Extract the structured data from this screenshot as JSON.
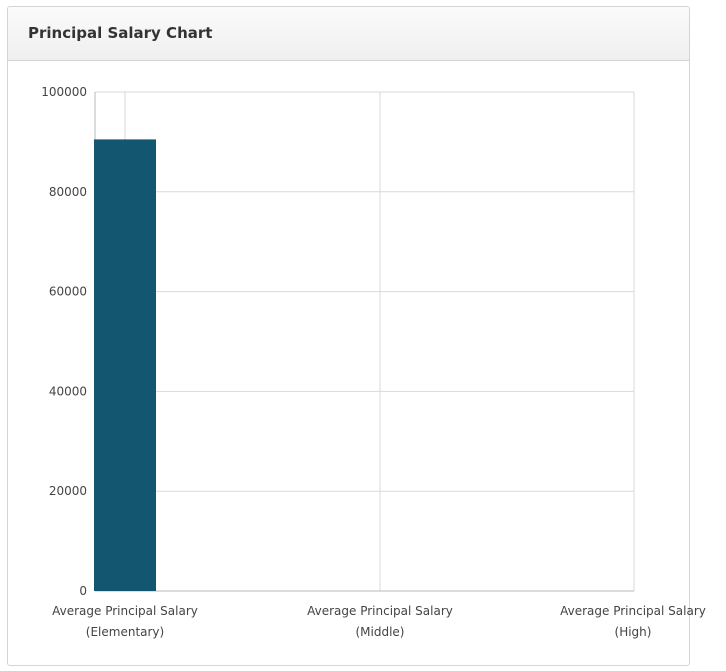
{
  "panel": {
    "title": "Principal Salary Chart"
  },
  "chart_data": {
    "type": "bar",
    "categories": [
      [
        "Average Principal Salary",
        "(Elementary)"
      ],
      [
        "Average Principal Salary",
        "(Middle)"
      ],
      [
        "Average Principal Salary",
        "(High)"
      ]
    ],
    "values": [
      90500,
      0,
      0
    ],
    "ylim": [
      0,
      100000
    ],
    "yticks": [
      0,
      20000,
      40000,
      60000,
      80000,
      100000
    ],
    "grid": true,
    "bar_color": "#135670",
    "title": "",
    "xlabel": "",
    "ylabel": ""
  }
}
